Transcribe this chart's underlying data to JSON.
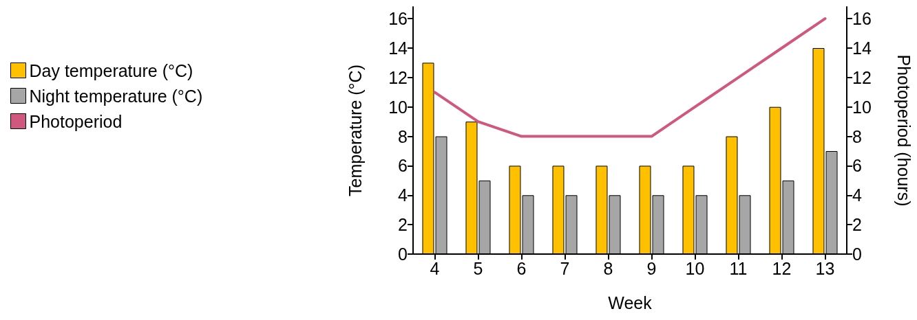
{
  "chart_data": {
    "type": "bar",
    "xlabel": "Week",
    "ylabel": "Temperature (°C)",
    "y2label": "Photoperiod (hours)",
    "categories": [
      "4",
      "5",
      "6",
      "7",
      "8",
      "9",
      "10",
      "11",
      "12",
      "13"
    ],
    "series": [
      {
        "name": "Day temperature (°C)",
        "color": "#ffc000",
        "values": [
          13,
          9,
          6,
          6,
          6,
          6,
          6,
          8,
          10,
          14
        ]
      },
      {
        "name": "Night temperature (°C)",
        "color": "#a6a6a6",
        "values": [
          8,
          5,
          4,
          4,
          4,
          4,
          4,
          4,
          5,
          7
        ]
      },
      {
        "name": "Photoperiod",
        "type": "line",
        "axis": "y2",
        "color": "#d0587e",
        "values": [
          11,
          9,
          8,
          8,
          8,
          8,
          10,
          12,
          14,
          16
        ],
        "marker": "none"
      }
    ],
    "ylim": [
      0,
      16.8
    ],
    "yticks": [
      0,
      2,
      4,
      6,
      8,
      10,
      12,
      14,
      16
    ],
    "y2lim": [
      0,
      16.8
    ],
    "y2ticks": [
      0,
      2,
      4,
      6,
      8,
      10,
      12,
      14,
      16
    ],
    "grid": false,
    "legend": "left"
  }
}
